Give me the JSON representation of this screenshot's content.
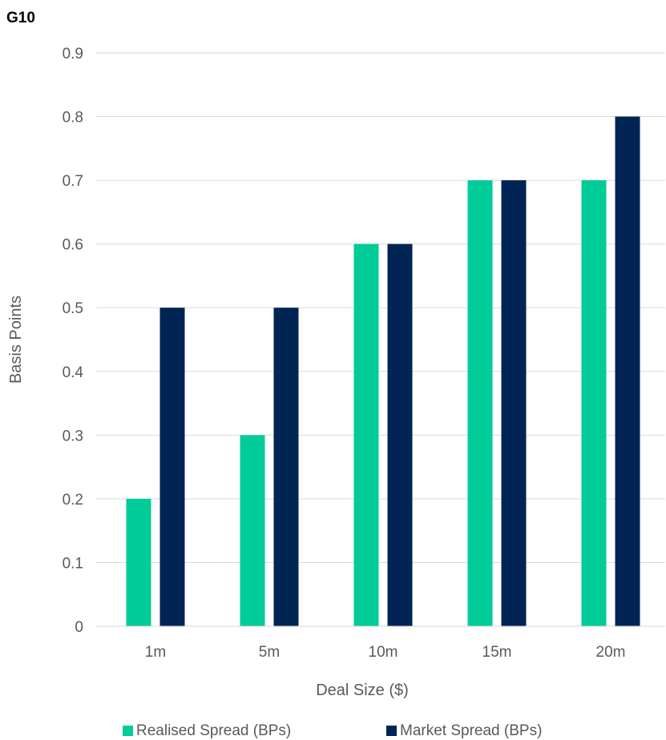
{
  "chart_data": {
    "type": "bar",
    "title": "G10",
    "xlabel": "Deal Size ($)",
    "ylabel": "Basis Points",
    "categories": [
      "1m",
      "5m",
      "10m",
      "15m",
      "20m"
    ],
    "series": [
      {
        "name": "Realised Spread (BPs)",
        "color": "#00CC99",
        "values": [
          0.2,
          0.3,
          0.6,
          0.7,
          0.7
        ]
      },
      {
        "name": "Market Spread (BPs)",
        "color": "#002554",
        "values": [
          0.5,
          0.5,
          0.6,
          0.7,
          0.8
        ]
      }
    ],
    "ylim": [
      0,
      0.9
    ],
    "yticks": [
      "0",
      "0.1",
      "0.2",
      "0.3",
      "0.4",
      "0.5",
      "0.6",
      "0.7",
      "0.8",
      "0.9"
    ],
    "grid": true,
    "legend_position": "bottom"
  }
}
